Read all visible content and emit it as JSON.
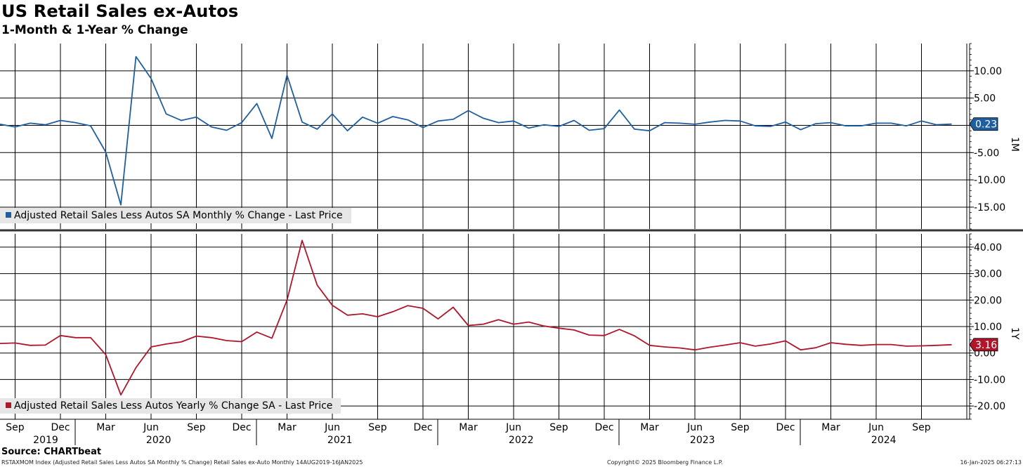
{
  "header": {
    "title": "US Retail Sales ex-Autos",
    "subtitle": "1-Month & 1-Year % Change"
  },
  "footer": {
    "source": "Source: CHARTbeat",
    "left": "RSTAXMOM Index (Adjusted Retail Sales Less Autos SA Monthly % Change) Retail Sales ex-Auto  Monthly 14AUG2019-16JAN2025",
    "middle": "Copyright© 2025 Bloomberg Finance L.P.",
    "right": "16-Jan-2025 06:27:13"
  },
  "colors": {
    "monthly": "#1f5fa0",
    "yearly": "#b0152a",
    "grid": "#000000"
  },
  "chart_data": [
    {
      "type": "line",
      "panel_label": "1M",
      "legend": "Adjusted Retail Sales Less Autos SA Monthly % Change - Last Price",
      "last_value_label": "0.23",
      "ylim": [
        -19,
        15
      ],
      "yticks": [
        "10.00",
        "5.00",
        "0.00",
        "-5.00",
        "-10.00",
        "-15.00"
      ],
      "ytick_values": [
        10,
        5,
        0,
        -5,
        -10,
        -15
      ],
      "x_start": "2019-08",
      "series": [
        {
          "values": [
            0.2,
            -0.3,
            0.4,
            0.1,
            0.9,
            0.5,
            -0.1,
            -4.9,
            -14.6,
            12.6,
            8.6,
            2.1,
            0.9,
            1.5,
            -0.3,
            -0.9,
            0.5,
            4.0,
            -2.4,
            9.2,
            0.6,
            -0.7,
            2.1,
            -1.0,
            1.5,
            0.4,
            1.6,
            1.0,
            -0.4,
            0.8,
            1.1,
            2.7,
            1.3,
            0.5,
            0.8,
            -0.5,
            0.1,
            -0.2,
            0.9,
            -0.9,
            -0.6,
            2.8,
            -0.7,
            -1.0,
            0.5,
            0.4,
            0.2,
            0.6,
            0.9,
            0.8,
            -0.1,
            -0.2,
            0.6,
            -0.8,
            0.3,
            0.5,
            -0.1,
            -0.1,
            0.4,
            0.4,
            -0.1,
            0.8,
            0.1,
            0.23
          ]
        }
      ]
    },
    {
      "type": "line",
      "panel_label": "1Y",
      "legend": "Adjusted Retail Sales Less Autos Yearly % Change SA - Last Price",
      "last_value_label": "3.16",
      "ylim": [
        -25,
        45
      ],
      "yticks": [
        "40.00",
        "30.00",
        "20.00",
        "10.00",
        "0.00",
        "-10.00",
        "-20.00"
      ],
      "ytick_values": [
        40,
        30,
        20,
        10,
        0,
        -10,
        -20
      ],
      "x_start": "2019-08",
      "series": [
        {
          "values": [
            3.6,
            3.8,
            2.9,
            3.0,
            6.6,
            5.8,
            5.8,
            -0.6,
            -15.8,
            -5.5,
            2.3,
            3.4,
            4.2,
            6.4,
            5.8,
            4.7,
            4.3,
            7.9,
            5.6,
            20.0,
            42.5,
            25.6,
            18.0,
            14.3,
            14.8,
            13.7,
            15.6,
            17.9,
            16.9,
            12.9,
            17.3,
            10.4,
            10.9,
            12.6,
            10.9,
            11.7,
            10.2,
            9.4,
            8.7,
            6.8,
            6.6,
            8.9,
            6.5,
            2.9,
            2.3,
            1.9,
            1.2,
            2.2,
            3.0,
            3.9,
            2.6,
            3.4,
            4.6,
            1.2,
            2.0,
            3.9,
            3.3,
            2.9,
            3.2,
            3.2,
            2.6,
            2.7,
            2.9,
            3.16
          ]
        }
      ]
    }
  ],
  "x_axis": {
    "months": [
      "Sep",
      "Dec",
      "Mar",
      "Jun",
      "Sep",
      "Dec",
      "Mar",
      "Jun",
      "Sep",
      "Dec",
      "Mar",
      "Jun",
      "Sep",
      "Dec",
      "Mar",
      "Jun",
      "Sep",
      "Dec",
      "Mar",
      "Jun",
      "Sep"
    ],
    "years": [
      "2019",
      "2020",
      "2021",
      "2022",
      "2023",
      "2024"
    ]
  }
}
